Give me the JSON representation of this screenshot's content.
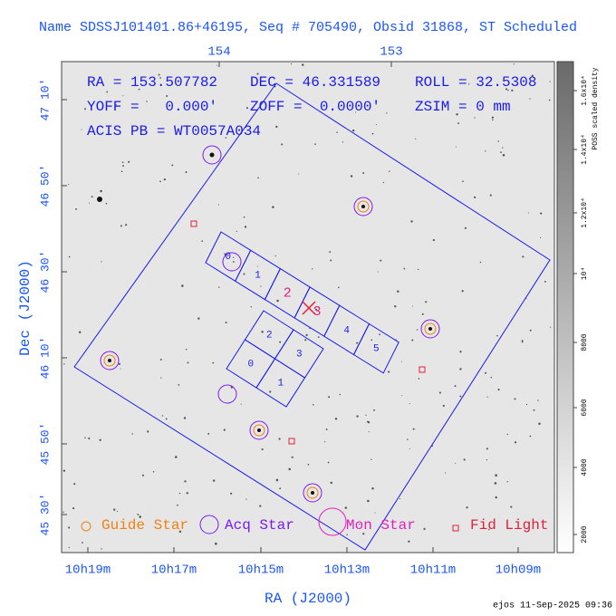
{
  "title": "Name SDSSJ101401.86+46195, Seq # 705490, Obsid 31868, ST Scheduled",
  "info": {
    "ra": "RA = 153.507782",
    "dec": "DEC = 46.331589",
    "roll": "ROLL = 32.5308",
    "yoff": "YOFF =   0.000'",
    "zoff": "ZOFF =  0.0000'",
    "zsim": "ZSIM = 0 mm",
    "acis": "ACIS PB = WT0057A034"
  },
  "x_axis": {
    "label": "RA (J2000)",
    "ticks": [
      "10h19m",
      "10h17m",
      "10h15m",
      "10h13m",
      "10h11m",
      "10h09m"
    ]
  },
  "top_axis": {
    "ticks": [
      "154",
      "153"
    ]
  },
  "y_axis": {
    "label": "Dec (J2000)",
    "ticks": [
      "47 10'",
      "46 50'",
      "46 30'",
      "46 10'",
      "45 50'",
      "45 30'"
    ]
  },
  "colorbar": {
    "label": "POSS scaled density",
    "ticks": [
      "2000",
      "4000",
      "6000",
      "8000",
      "10⁴",
      "1.2x10⁴",
      "1.4x10⁴",
      "1.6x10⁴"
    ]
  },
  "legend": [
    "Guide Star",
    "Acq Star",
    "Mon Star",
    "Fid Light"
  ],
  "acis_s_chips": [
    "0",
    "1",
    "2",
    "3",
    "4",
    "5"
  ],
  "acis_i_chips": [
    "2",
    "3",
    "0",
    "1"
  ],
  "footer": "ejos 11-Sep-2025 09:36"
}
